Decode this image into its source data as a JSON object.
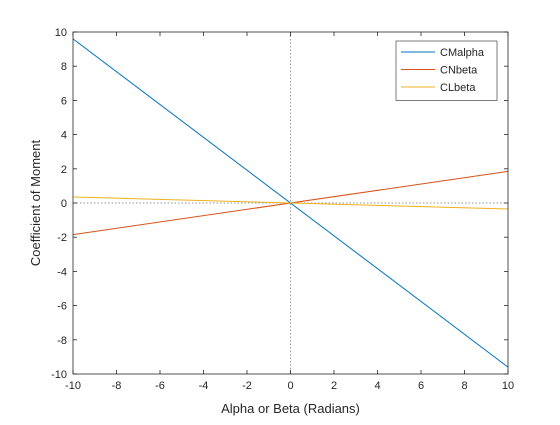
{
  "chart_data": {
    "type": "line",
    "xlabel": "Alpha or Beta (Radians)",
    "ylabel": "Coefficient of Moment",
    "xlim": [
      -10,
      10
    ],
    "ylim": [
      -10,
      10
    ],
    "xticks": [
      -10,
      -8,
      -6,
      -4,
      -2,
      0,
      2,
      4,
      6,
      8,
      10
    ],
    "yticks": [
      -10,
      -8,
      -6,
      -4,
      -2,
      0,
      2,
      4,
      6,
      8,
      10
    ],
    "grid": false,
    "reference_lines": {
      "x_zero": "dotted",
      "y_zero": "dotted"
    },
    "legend_position": "top-right",
    "series": [
      {
        "name": "CMalpha",
        "color": "#0072BD",
        "x": [
          -10,
          10
        ],
        "y": [
          9.6,
          -9.6
        ]
      },
      {
        "name": "CNbeta",
        "color": "#D95319",
        "x": [
          -10,
          10
        ],
        "y": [
          -1.85,
          1.85
        ]
      },
      {
        "name": "CLbeta",
        "color": "#EDB120",
        "x": [
          -10,
          10
        ],
        "y": [
          0.35,
          -0.35
        ]
      }
    ]
  }
}
